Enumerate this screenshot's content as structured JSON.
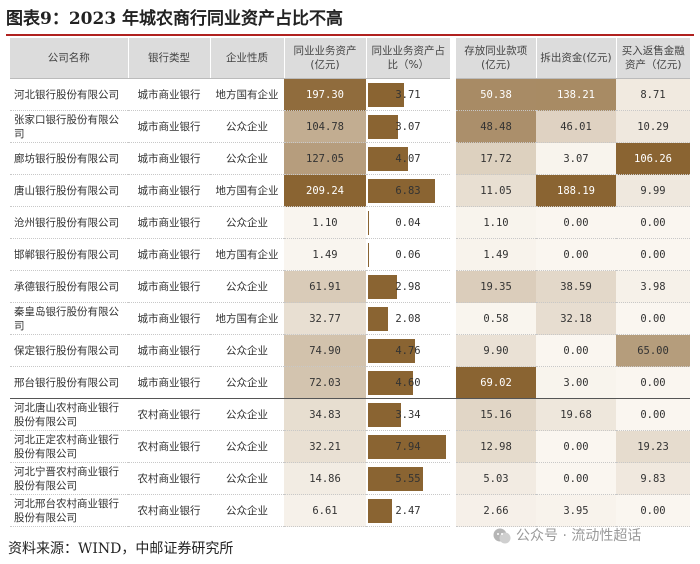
{
  "title": "图表9：2023 年城农商行同业资产占比不高",
  "source": "资料来源：WIND，中邮证券研究所",
  "watermark": "公众号 · 流动性超话",
  "headers": {
    "name": "公司名称",
    "bank_type": "银行类型",
    "nature": "企业性质",
    "interbank_assets": "同业业务资产(亿元)",
    "share": "同业业务资产占比（%）",
    "deposits_out": "存放同业款项(亿元)",
    "lending_out": "拆出资金(亿元)",
    "reverse_repo": "买入返售金融资产（亿元)"
  },
  "colors": {
    "bar": "#8a6432",
    "header_bg": "#dcdcdc",
    "title_rule": "#b0211f"
  },
  "rows": [
    {
      "name": "河北银行股份有限公司",
      "type": "城市商业银行",
      "nature": "地方国有企业",
      "assets": "197.30",
      "share": "3.71",
      "deposits": "50.38",
      "lending": "138.21",
      "repo": "8.71"
    },
    {
      "name": "张家口银行股份有限公司",
      "type": "城市商业银行",
      "nature": "公众企业",
      "assets": "104.78",
      "share": "3.07",
      "deposits": "48.48",
      "lending": "46.01",
      "repo": "10.29"
    },
    {
      "name": "廊坊银行股份有限公司",
      "type": "城市商业银行",
      "nature": "公众企业",
      "assets": "127.05",
      "share": "4.07",
      "deposits": "17.72",
      "lending": "3.07",
      "repo": "106.26"
    },
    {
      "name": "唐山银行股份有限公司",
      "type": "城市商业银行",
      "nature": "地方国有企业",
      "assets": "209.24",
      "share": "6.83",
      "deposits": "11.05",
      "lending": "188.19",
      "repo": "9.99"
    },
    {
      "name": "沧州银行股份有限公司",
      "type": "城市商业银行",
      "nature": "公众企业",
      "assets": "1.10",
      "share": "0.04",
      "deposits": "1.10",
      "lending": "0.00",
      "repo": "0.00"
    },
    {
      "name": "邯郸银行股份有限公司",
      "type": "城市商业银行",
      "nature": "地方国有企业",
      "assets": "1.49",
      "share": "0.06",
      "deposits": "1.49",
      "lending": "0.00",
      "repo": "0.00"
    },
    {
      "name": "承德银行股份有限公司",
      "type": "城市商业银行",
      "nature": "公众企业",
      "assets": "61.91",
      "share": "2.98",
      "deposits": "19.35",
      "lending": "38.59",
      "repo": "3.98"
    },
    {
      "name": "秦皇岛银行股份有限公司",
      "type": "城市商业银行",
      "nature": "地方国有企业",
      "assets": "32.77",
      "share": "2.08",
      "deposits": "0.58",
      "lending": "32.18",
      "repo": "0.00"
    },
    {
      "name": "保定银行股份有限公司",
      "type": "城市商业银行",
      "nature": "公众企业",
      "assets": "74.90",
      "share": "4.76",
      "deposits": "9.90",
      "lending": "0.00",
      "repo": "65.00"
    },
    {
      "name": "邢台银行股份有限公司",
      "type": "城市商业银行",
      "nature": "公众企业",
      "assets": "72.03",
      "share": "4.60",
      "deposits": "69.02",
      "lending": "3.00",
      "repo": "0.00"
    },
    {
      "name": "河北唐山农村商业银行股份有限公司",
      "type": "农村商业银行",
      "nature": "公众企业",
      "assets": "34.83",
      "share": "3.34",
      "deposits": "15.16",
      "lending": "19.68",
      "repo": "0.00"
    },
    {
      "name": "河北正定农村商业银行股份有限公司",
      "type": "农村商业银行",
      "nature": "公众企业",
      "assets": "32.21",
      "share": "7.94",
      "deposits": "12.98",
      "lending": "0.00",
      "repo": "19.23"
    },
    {
      "name": "河北宁晋农村商业银行股份有限公司",
      "type": "农村商业银行",
      "nature": "公众企业",
      "assets": "14.86",
      "share": "5.55",
      "deposits": "5.03",
      "lending": "0.00",
      "repo": "9.83"
    },
    {
      "name": "河北邢台农村商业银行股份有限公司",
      "type": "农村商业银行",
      "nature": "公众企业",
      "assets": "6.61",
      "share": "2.47",
      "deposits": "2.66",
      "lending": "3.95",
      "repo": "0.00"
    }
  ]
}
